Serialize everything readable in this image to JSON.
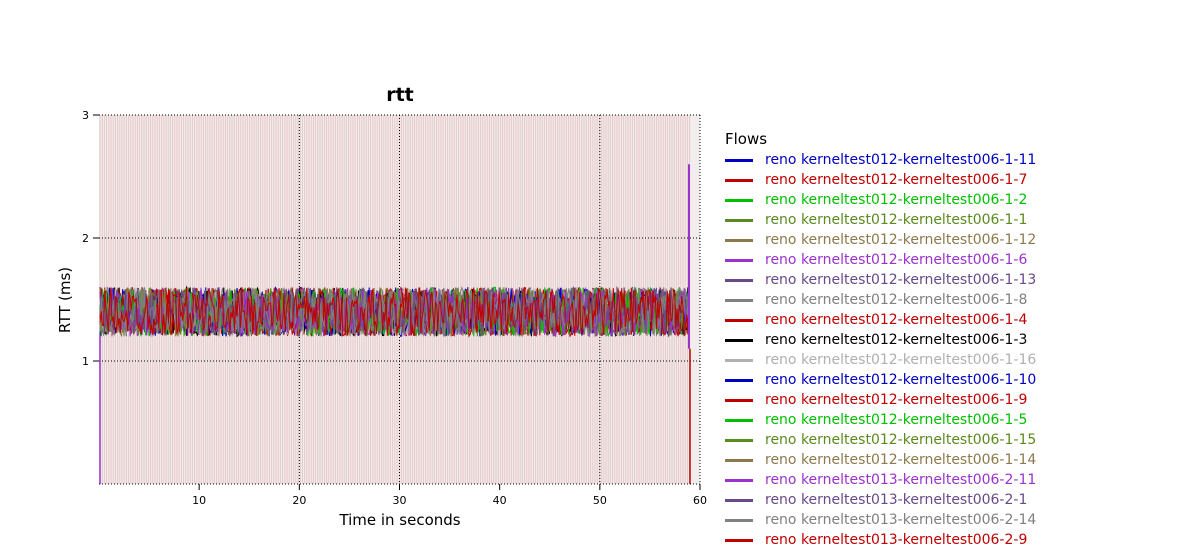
{
  "chart_data": {
    "type": "line",
    "title": "rtt",
    "xlabel": "Time in seconds",
    "ylabel": "RTT (ms)",
    "xlim": [
      0,
      60
    ],
    "ylim": [
      0,
      3
    ],
    "xticks": [
      "10",
      "20",
      "30",
      "40",
      "50",
      "60"
    ],
    "xtick_values": [
      10,
      20,
      30,
      40,
      50,
      60
    ],
    "yticks": [
      "1",
      "2",
      "3"
    ],
    "ytick_values": [
      1,
      2,
      3
    ],
    "grid": true,
    "legend_title": "Flows",
    "legend_position": "right",
    "series_profile": {
      "x_start": 0,
      "x_end": 59,
      "mean_rtt": 1.4,
      "noise_amplitude": 0.2,
      "end_spike": 2.6
    },
    "series": [
      {
        "name": "reno kerneltest012-kerneltest006-1-11",
        "color": "#0000c0"
      },
      {
        "name": "reno kerneltest012-kerneltest006-1-7",
        "color": "#c00000"
      },
      {
        "name": "reno kerneltest012-kerneltest006-1-2",
        "color": "#00c000"
      },
      {
        "name": "reno kerneltest012-kerneltest006-1-1",
        "color": "#5b8a1e"
      },
      {
        "name": "reno kerneltest012-kerneltest006-1-12",
        "color": "#8c7a4c"
      },
      {
        "name": "reno kerneltest012-kerneltest006-1-6",
        "color": "#9a32cd"
      },
      {
        "name": "reno kerneltest012-kerneltest006-1-13",
        "color": "#684a88"
      },
      {
        "name": "reno kerneltest012-kerneltest006-1-8",
        "color": "#808080"
      },
      {
        "name": "reno kerneltest012-kerneltest006-1-4",
        "color": "#c00000"
      },
      {
        "name": "reno kerneltest012-kerneltest006-1-3",
        "color": "#000000"
      },
      {
        "name": "reno kerneltest012-kerneltest006-1-16",
        "color": "#b0b0b0"
      },
      {
        "name": "reno kerneltest012-kerneltest006-1-10",
        "color": "#0000c0"
      },
      {
        "name": "reno kerneltest012-kerneltest006-1-9",
        "color": "#c00000"
      },
      {
        "name": "reno kerneltest012-kerneltest006-1-5",
        "color": "#00c000"
      },
      {
        "name": "reno kerneltest012-kerneltest006-1-15",
        "color": "#5b8a1e"
      },
      {
        "name": "reno kerneltest012-kerneltest006-1-14",
        "color": "#8c7a4c"
      },
      {
        "name": "reno kerneltest013-kerneltest006-2-11",
        "color": "#9a32cd"
      },
      {
        "name": "reno kerneltest013-kerneltest006-2-1",
        "color": "#684a88"
      },
      {
        "name": "reno kerneltest013-kerneltest006-2-14",
        "color": "#808080"
      },
      {
        "name": "reno kerneltest013-kerneltest006-2-9",
        "color": "#c00000"
      }
    ]
  }
}
